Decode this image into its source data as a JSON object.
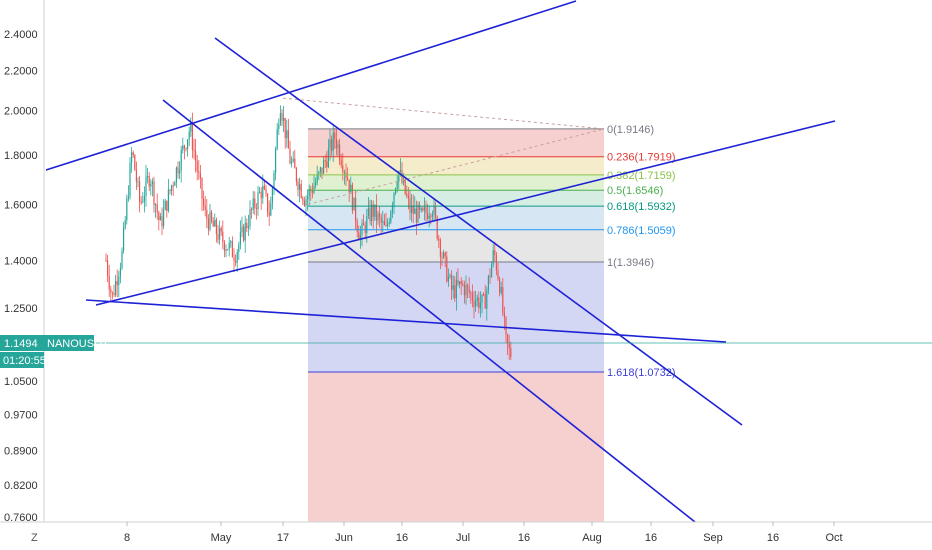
{
  "chart_data": {
    "type": "line",
    "symbol": "NANOUSDT",
    "price_scale": "log",
    "y_ticks": [
      "2.4000",
      "2.2000",
      "2.0000",
      "1.8000",
      "1.6000",
      "1.4000",
      "1.2500",
      "1.0500",
      "0.9700",
      "0.8900",
      "0.8200",
      "0.7600"
    ],
    "x_ticks": [
      "8",
      "May",
      "17",
      "Jun",
      "16",
      "Jul",
      "16",
      "Aug",
      "16",
      "Sep",
      "16",
      "Oct"
    ],
    "last_price": "1.1494",
    "countdown": "01:20:55",
    "axis_corner_label": "Z",
    "fibonacci": {
      "levels": [
        {
          "label": "0(1.9146)",
          "ratio": 0,
          "price": 1.9146,
          "color": "#787b86"
        },
        {
          "label": "0.236(1.7919)",
          "ratio": 0.236,
          "price": 1.7919,
          "color": "#e53935"
        },
        {
          "label": "0.382(1.7159)",
          "ratio": 0.382,
          "price": 1.7159,
          "color": "#8bc34a"
        },
        {
          "label": "0.5(1.6546)",
          "ratio": 0.5,
          "price": 1.6546,
          "color": "#4caf50"
        },
        {
          "label": "0.618(1.5932)",
          "ratio": 0.618,
          "price": 1.5932,
          "color": "#089981"
        },
        {
          "label": "0.786(1.5059)",
          "ratio": 0.786,
          "price": 1.5059,
          "color": "#2196f3"
        },
        {
          "label": "1(1.3946)",
          "ratio": 1,
          "price": 1.3946,
          "color": "#787b86"
        },
        {
          "label": "1.618(1.0732)",
          "ratio": 1.618,
          "price": 1.0732,
          "color": "#3f3fd8"
        }
      ]
    },
    "colors": {
      "candles_up": "#26a69a",
      "candles_down": "#ef5350",
      "trendlines": "#1e22d6",
      "last_price": "#26a69a"
    }
  }
}
